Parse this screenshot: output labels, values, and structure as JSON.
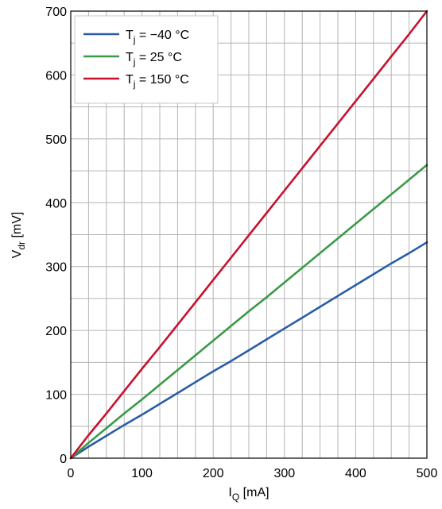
{
  "chart_data": {
    "type": "line",
    "title": "",
    "xlabel": {
      "main": "I",
      "sub": "Q",
      "unit": " [mA]"
    },
    "ylabel": {
      "main": "V",
      "sub": "dr",
      "unit": " [mV]"
    },
    "xlim": [
      0,
      500
    ],
    "ylim": [
      0,
      700
    ],
    "xticks": [
      0,
      100,
      200,
      300,
      400,
      500
    ],
    "yticks": [
      0,
      100,
      200,
      300,
      400,
      500,
      600,
      700
    ],
    "xtick_labels": [
      "0",
      "100",
      "200",
      "300",
      "400",
      "500"
    ],
    "ytick_labels": [
      "0",
      "100",
      "200",
      "300",
      "400",
      "500",
      "600",
      "700"
    ],
    "grid": true,
    "legend_position": "top-left",
    "series": [
      {
        "name": {
          "main": "T",
          "sub": "j",
          "rest": " = −40 °C"
        },
        "color": "#2a5ca8",
        "x": [
          0,
          25,
          50,
          75,
          100,
          125,
          150,
          175,
          200,
          225,
          250,
          275,
          300,
          325,
          350,
          375,
          400,
          425,
          450,
          475,
          500
        ],
        "y": [
          0,
          18,
          35,
          52,
          68,
          85,
          102,
          119,
          136,
          152,
          169,
          186,
          203,
          220,
          237,
          254,
          271,
          288,
          305,
          321,
          338
        ]
      },
      {
        "name": {
          "main": "T",
          "sub": "j",
          "rest": " = 25 °C"
        },
        "color": "#3a9a48",
        "x": [
          0,
          25,
          50,
          75,
          100,
          125,
          150,
          175,
          200,
          225,
          250,
          275,
          300,
          325,
          350,
          375,
          400,
          425,
          450,
          475,
          500
        ],
        "y": [
          0,
          24,
          47,
          70,
          92,
          115,
          138,
          161,
          184,
          207,
          230,
          252,
          275,
          298,
          321,
          344,
          367,
          390,
          413,
          436,
          459
        ]
      },
      {
        "name": {
          "main": "T",
          "sub": "j",
          "rest": " = 150 °C"
        },
        "color": "#c8102e",
        "x": [
          0,
          25,
          50,
          75,
          100,
          125,
          150,
          175,
          200,
          225,
          250,
          275,
          300,
          325,
          350,
          375,
          400,
          425,
          450,
          475,
          500
        ],
        "y": [
          0,
          36,
          70,
          105,
          140,
          174,
          209,
          244,
          279,
          314,
          349,
          384,
          419,
          454,
          489,
          524,
          559,
          594,
          629,
          664,
          700
        ]
      }
    ]
  }
}
